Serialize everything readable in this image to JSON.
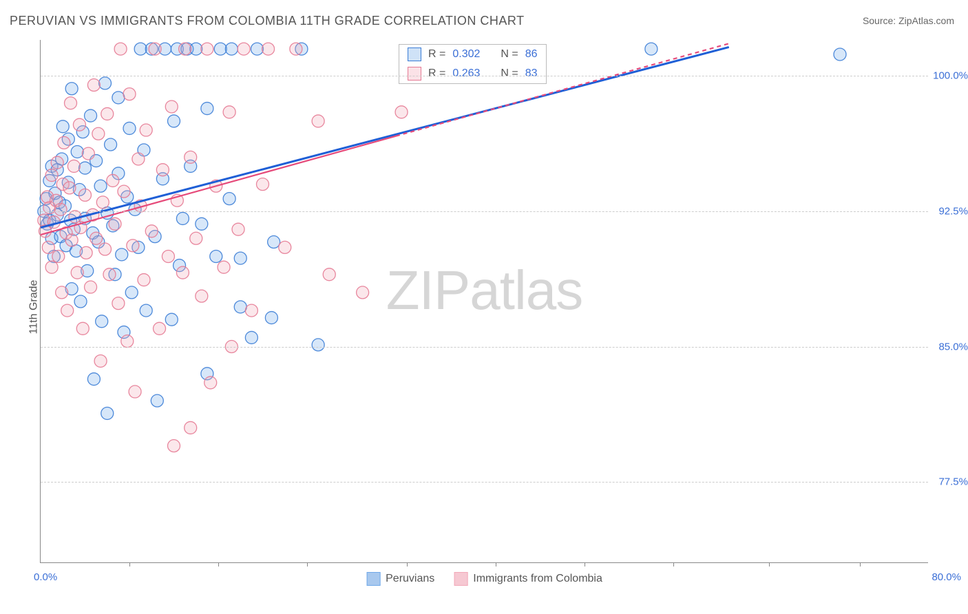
{
  "title": "PERUVIAN VS IMMIGRANTS FROM COLOMBIA 11TH GRADE CORRELATION CHART",
  "source": "Source: ZipAtlas.com",
  "ylabel": "11th Grade",
  "watermark_a": "ZIP",
  "watermark_b": "atlas",
  "chart": {
    "type": "scatter",
    "background_color": "#ffffff",
    "grid_color": "#cccccc",
    "axis_color": "#888888",
    "xlim": [
      0,
      80
    ],
    "ylim": [
      73,
      102
    ],
    "x_ticks": [
      8,
      16,
      24,
      33,
      41,
      49,
      57,
      65.6,
      73.8
    ],
    "y_ticks": [
      77.5,
      85.0,
      92.5,
      100.0
    ],
    "y_tick_labels": [
      "77.5%",
      "85.0%",
      "92.5%",
      "100.0%"
    ],
    "xlim_labels": [
      "0.0%",
      "80.0%"
    ],
    "marker_radius": 9,
    "marker_fill_opacity": 0.28,
    "marker_stroke_opacity": 0.9,
    "marker_stroke_width": 1.3,
    "series": [
      {
        "name": "Peruvians",
        "color": "#6fa8e8",
        "stroke": "#3b7dd6",
        "line_color": "#1f5fd6",
        "line_width": 3,
        "line_dash": "none",
        "R": "0.302",
        "N": "86",
        "regression": {
          "x1": 0,
          "y1": 91.6,
          "x2": 62,
          "y2": 101.6
        },
        "points": [
          [
            0.3,
            92.5
          ],
          [
            0.5,
            93.2
          ],
          [
            0.6,
            91.8
          ],
          [
            0.8,
            92.0
          ],
          [
            0.8,
            94.2
          ],
          [
            1.0,
            91.0
          ],
          [
            1.0,
            95.0
          ],
          [
            1.2,
            90.0
          ],
          [
            1.3,
            93.5
          ],
          [
            1.5,
            92.3
          ],
          [
            1.5,
            94.8
          ],
          [
            1.7,
            93.0
          ],
          [
            1.8,
            91.1
          ],
          [
            1.9,
            95.4
          ],
          [
            2.0,
            97.2
          ],
          [
            2.2,
            92.8
          ],
          [
            2.3,
            90.6
          ],
          [
            2.5,
            94.1
          ],
          [
            2.5,
            96.5
          ],
          [
            2.7,
            92.0
          ],
          [
            2.8,
            88.2
          ],
          [
            2.8,
            99.3
          ],
          [
            3.0,
            91.5
          ],
          [
            3.2,
            90.3
          ],
          [
            3.3,
            95.8
          ],
          [
            3.5,
            93.7
          ],
          [
            3.6,
            87.5
          ],
          [
            3.8,
            96.9
          ],
          [
            4.0,
            92.1
          ],
          [
            4.0,
            94.9
          ],
          [
            4.2,
            89.2
          ],
          [
            4.5,
            97.8
          ],
          [
            4.7,
            91.3
          ],
          [
            4.8,
            83.2
          ],
          [
            5.0,
            95.3
          ],
          [
            5.2,
            90.8
          ],
          [
            5.4,
            93.9
          ],
          [
            5.5,
            86.4
          ],
          [
            5.8,
            99.6
          ],
          [
            6.0,
            92.4
          ],
          [
            6.0,
            81.3
          ],
          [
            6.3,
            96.2
          ],
          [
            6.5,
            91.7
          ],
          [
            6.7,
            89.0
          ],
          [
            7.0,
            94.6
          ],
          [
            7.0,
            98.8
          ],
          [
            7.3,
            90.1
          ],
          [
            7.5,
            85.8
          ],
          [
            7.8,
            93.3
          ],
          [
            8.0,
            97.1
          ],
          [
            8.2,
            88.0
          ],
          [
            8.5,
            92.6
          ],
          [
            8.8,
            90.5
          ],
          [
            9.0,
            101.5
          ],
          [
            9.3,
            95.9
          ],
          [
            9.5,
            87.0
          ],
          [
            10.0,
            101.5
          ],
          [
            10.3,
            91.1
          ],
          [
            10.5,
            82.0
          ],
          [
            11.0,
            94.3
          ],
          [
            11.2,
            101.5
          ],
          [
            11.8,
            86.5
          ],
          [
            12.0,
            97.5
          ],
          [
            12.3,
            101.5
          ],
          [
            12.5,
            89.5
          ],
          [
            12.8,
            92.1
          ],
          [
            13.2,
            101.5
          ],
          [
            13.5,
            95.0
          ],
          [
            14.0,
            101.5
          ],
          [
            14.5,
            91.8
          ],
          [
            15.0,
            83.5
          ],
          [
            15.0,
            98.2
          ],
          [
            15.8,
            90.0
          ],
          [
            16.2,
            101.5
          ],
          [
            17.0,
            93.2
          ],
          [
            17.2,
            101.5
          ],
          [
            18.0,
            87.2
          ],
          [
            18.0,
            89.9
          ],
          [
            19.0,
            85.5
          ],
          [
            19.5,
            101.5
          ],
          [
            20.8,
            86.6
          ],
          [
            21.0,
            90.8
          ],
          [
            23.5,
            101.5
          ],
          [
            25.0,
            85.1
          ],
          [
            55.0,
            101.5
          ],
          [
            72.0,
            101.2
          ]
        ]
      },
      {
        "name": "Immigrants from Colombia",
        "color": "#f2a8b8",
        "stroke": "#e57a94",
        "line_color": "#e64a7a",
        "line_width": 2.2,
        "line_dash": "6 5",
        "extra_line": {
          "solid_until_x": 32
        },
        "R": "0.263",
        "N": "83",
        "regression": {
          "x1": 0,
          "y1": 91.2,
          "x2": 62,
          "y2": 101.8
        },
        "points": [
          [
            0.3,
            92.0
          ],
          [
            0.4,
            91.4
          ],
          [
            0.6,
            93.3
          ],
          [
            0.7,
            90.5
          ],
          [
            0.8,
            92.7
          ],
          [
            1.0,
            94.5
          ],
          [
            1.0,
            89.4
          ],
          [
            1.2,
            91.9
          ],
          [
            1.4,
            93.1
          ],
          [
            1.5,
            95.2
          ],
          [
            1.6,
            90.0
          ],
          [
            1.8,
            92.6
          ],
          [
            1.9,
            88.0
          ],
          [
            2.0,
            94.0
          ],
          [
            2.1,
            96.3
          ],
          [
            2.3,
            91.3
          ],
          [
            2.4,
            87.0
          ],
          [
            2.6,
            93.8
          ],
          [
            2.7,
            98.5
          ],
          [
            2.8,
            90.9
          ],
          [
            3.0,
            95.0
          ],
          [
            3.1,
            92.2
          ],
          [
            3.3,
            89.1
          ],
          [
            3.5,
            97.3
          ],
          [
            3.6,
            91.6
          ],
          [
            3.8,
            86.0
          ],
          [
            4.0,
            93.4
          ],
          [
            4.1,
            90.2
          ],
          [
            4.3,
            95.7
          ],
          [
            4.5,
            88.3
          ],
          [
            4.7,
            92.3
          ],
          [
            4.8,
            99.5
          ],
          [
            5.0,
            91.0
          ],
          [
            5.2,
            96.8
          ],
          [
            5.4,
            84.2
          ],
          [
            5.6,
            93.0
          ],
          [
            5.8,
            90.4
          ],
          [
            6.0,
            97.9
          ],
          [
            6.2,
            89.0
          ],
          [
            6.5,
            94.2
          ],
          [
            6.7,
            91.8
          ],
          [
            7.0,
            87.4
          ],
          [
            7.2,
            101.5
          ],
          [
            7.5,
            93.6
          ],
          [
            7.8,
            85.3
          ],
          [
            8.0,
            99.0
          ],
          [
            8.3,
            90.6
          ],
          [
            8.5,
            82.5
          ],
          [
            8.8,
            95.4
          ],
          [
            9.0,
            92.8
          ],
          [
            9.3,
            88.7
          ],
          [
            9.5,
            97.0
          ],
          [
            10.0,
            91.4
          ],
          [
            10.3,
            101.5
          ],
          [
            10.7,
            86.0
          ],
          [
            11.0,
            94.8
          ],
          [
            11.5,
            90.0
          ],
          [
            11.8,
            98.3
          ],
          [
            12.0,
            79.5
          ],
          [
            12.3,
            93.1
          ],
          [
            12.8,
            89.1
          ],
          [
            13.0,
            101.5
          ],
          [
            13.5,
            80.5
          ],
          [
            13.5,
            95.5
          ],
          [
            14.0,
            91.0
          ],
          [
            14.5,
            87.8
          ],
          [
            15.0,
            101.5
          ],
          [
            15.3,
            83.0
          ],
          [
            15.8,
            93.9
          ],
          [
            16.5,
            89.4
          ],
          [
            17.0,
            98.0
          ],
          [
            17.2,
            85.0
          ],
          [
            17.8,
            91.5
          ],
          [
            18.3,
            101.5
          ],
          [
            19.0,
            87.0
          ],
          [
            20.0,
            94.0
          ],
          [
            20.5,
            101.5
          ],
          [
            22.0,
            90.5
          ],
          [
            23.0,
            101.5
          ],
          [
            25.0,
            97.5
          ],
          [
            26.0,
            89.0
          ],
          [
            29.0,
            88.0
          ],
          [
            32.5,
            98.0
          ]
        ]
      }
    ],
    "legend_bottom": [
      {
        "label": "Peruvians",
        "fill": "#a8c8ee",
        "stroke": "#6fa8e8"
      },
      {
        "label": "Immigrants from Colombia",
        "fill": "#f6c8d2",
        "stroke": "#f2a8b8"
      }
    ]
  },
  "legend_r_label": "R =",
  "legend_n_label": "N ="
}
